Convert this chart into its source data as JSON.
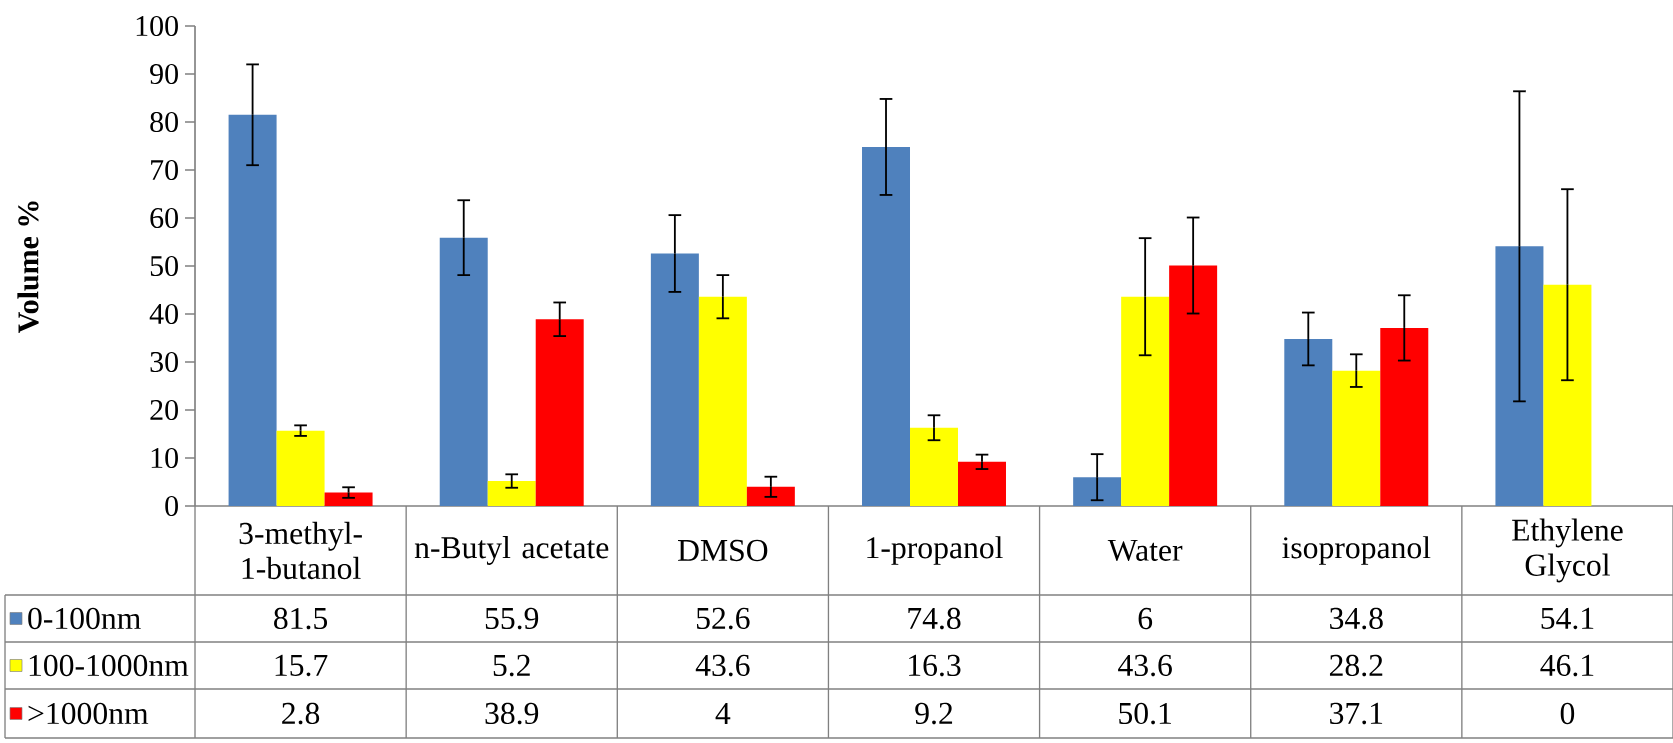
{
  "chart_data": {
    "type": "bar",
    "ylabel": "Volume %",
    "categories": [
      "3-methyl-1-butanol",
      "n-Butyl acetate",
      "DMSO",
      "1-propanol",
      "Water",
      "isopropanol",
      "Ethylene Glycol"
    ],
    "series": [
      {
        "name": "0-100nm",
        "color": "#4f81bd",
        "values": [
          81.5,
          55.9,
          52.6,
          74.8,
          6,
          34.8,
          54.1
        ],
        "errors": [
          10.5,
          7.8,
          8,
          10,
          4.8,
          5.5,
          32.3
        ]
      },
      {
        "name": "100-1000nm",
        "color": "#ffff00",
        "values": [
          15.7,
          5.2,
          43.6,
          16.3,
          43.6,
          28.2,
          46.1
        ],
        "errors": [
          1.1,
          1.4,
          4.5,
          2.6,
          12.2,
          3.4,
          19.9
        ]
      },
      {
        "name": ">1000nm",
        "color": "#ff0000",
        "values": [
          2.8,
          38.9,
          4,
          9.2,
          50.1,
          37.1,
          0
        ],
        "errors": [
          1.1,
          3.5,
          2.1,
          1.5,
          10,
          6.8,
          null
        ]
      }
    ],
    "ylim": [
      0,
      100
    ],
    "yticks": [
      0,
      10,
      20,
      30,
      40,
      50,
      60,
      70,
      80,
      90,
      100
    ],
    "data_labels": true,
    "legend": "bottom left"
  }
}
